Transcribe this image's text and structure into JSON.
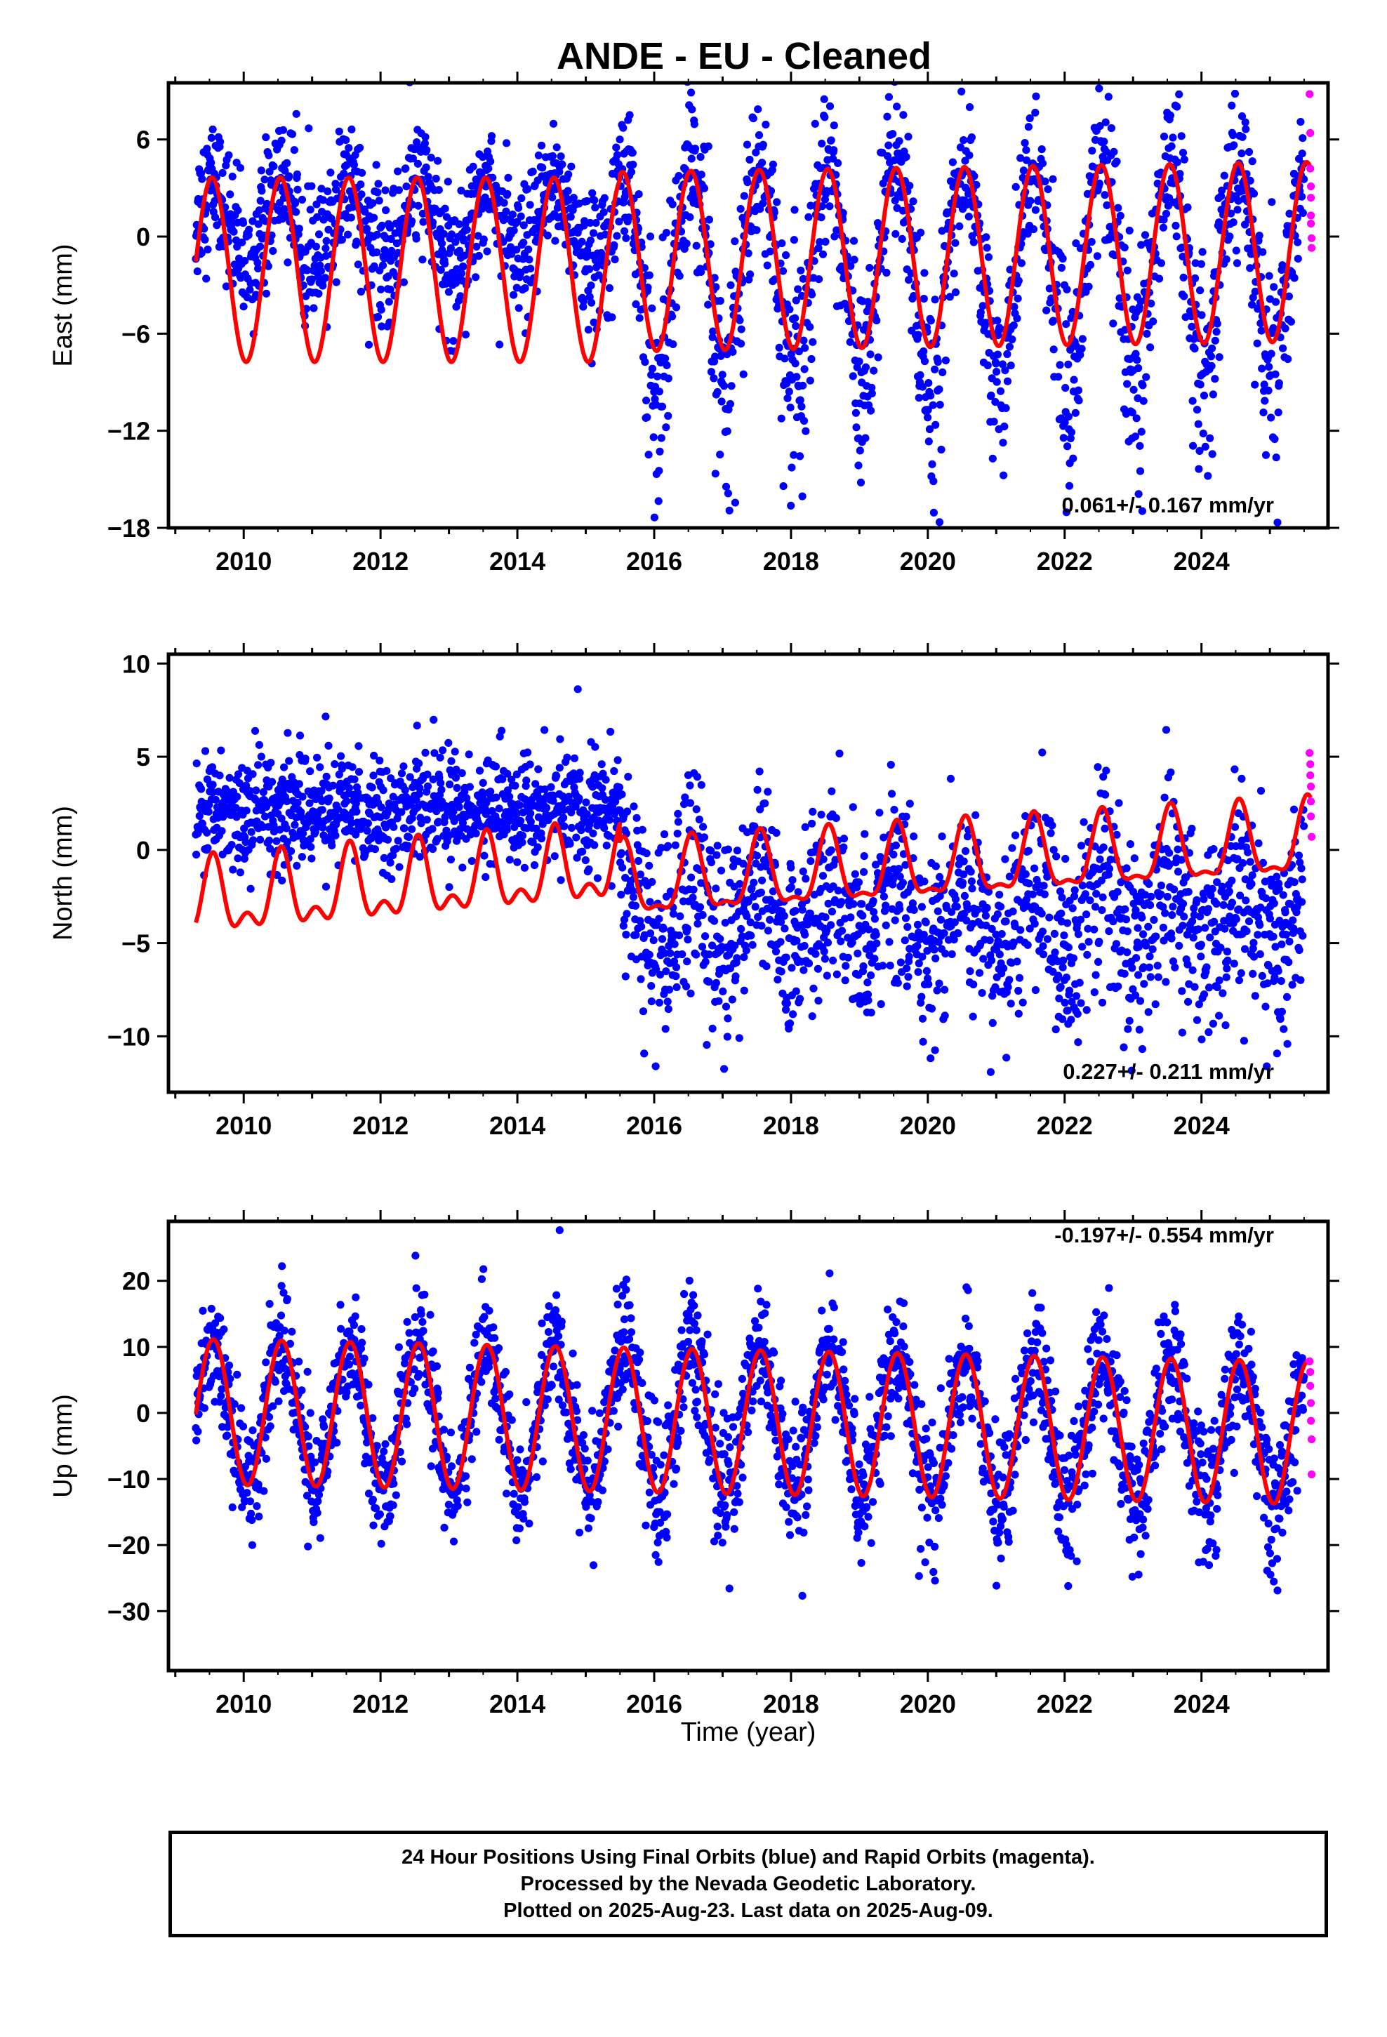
{
  "title": "ANDE  - EU - Cleaned",
  "colors": {
    "final_orbits": "#0000ff",
    "rapid_orbits": "#ff00ff",
    "model_fit": "#ff0000",
    "frame": "#000000"
  },
  "chart_data": [
    {
      "type": "scatter",
      "component": "East",
      "ylabel": "East (mm)",
      "xlabel": "",
      "xlim": [
        2008.9,
        2025.85
      ],
      "ylim": [
        -18,
        9.5
      ],
      "y_ticks": [
        -18,
        -12,
        -6,
        0,
        6
      ],
      "x_ticks": [
        2010,
        2012,
        2014,
        2016,
        2018,
        2020,
        2022,
        2024
      ],
      "rate_text": "0.061+/- 0.167 mm/yr",
      "series": [
        {
          "key": "final",
          "description": "24 Hour Positions Using Final Orbits (blue)",
          "x_range": [
            2009.3,
            2025.5
          ],
          "scatter_sd": 2.1,
          "late_offset_after_2015_5": -2.4,
          "late_extra_scatter": 2.2
        },
        {
          "key": "rapid",
          "description": "Rapid Orbits (magenta)",
          "x": [
            2025.58,
            2025.59,
            2025.59,
            2025.6,
            2025.6,
            2025.6,
            2025.6,
            2025.61,
            2025.61
          ],
          "y": [
            8.8,
            6.4,
            4.2,
            3.1,
            2.4,
            1.3,
            0.8,
            -0.1,
            -0.7
          ]
        },
        {
          "key": "model",
          "description": "model fit (red)",
          "segments": [
            {
              "x_range": [
                2009.3,
                2015.5
              ],
              "offset": -2.05,
              "annual_amp": 5.7,
              "annual_phase_deg": 5,
              "trend": 0.0
            },
            {
              "x_range": [
                2015.5,
                2025.6
              ],
              "offset": -1.55,
              "annual_amp": 5.55,
              "annual_phase_deg": 5,
              "trend": 0.06
            }
          ]
        }
      ]
    },
    {
      "type": "scatter",
      "component": "North",
      "ylabel": "North (mm)",
      "xlabel": "",
      "xlim": [
        2008.9,
        2025.85
      ],
      "ylim": [
        -13,
        10.5
      ],
      "y_ticks": [
        -10,
        -5,
        0,
        5,
        10
      ],
      "x_ticks": [
        2010,
        2012,
        2014,
        2016,
        2018,
        2020,
        2022,
        2024
      ],
      "rate_text": "0.227+/- 0.211 mm/yr",
      "series": [
        {
          "key": "final",
          "description": "24 Hour Positions Using Final Orbits (blue)",
          "x_range": [
            2009.3,
            2025.5
          ],
          "scatter_sd": 1.5,
          "early_mean": 2.2,
          "late_mean": -3.5,
          "late_extra_scatter": 2.4
        },
        {
          "key": "rapid",
          "description": "Rapid Orbits (magenta)",
          "x": [
            2025.58,
            2025.59,
            2025.59,
            2025.6,
            2025.6,
            2025.6,
            2025.61
          ],
          "y": [
            5.2,
            4.6,
            4.0,
            3.4,
            2.6,
            1.8,
            0.7
          ]
        },
        {
          "key": "model",
          "description": "model fit (red)",
          "segments": [
            {
              "x_range": [
                2009.3,
                2015.5
              ],
              "offset": -2.9,
              "annual_amp": 1.7,
              "semiannual_amp": 1.0,
              "trend": 0.31
            },
            {
              "x_range": [
                2015.5,
                2025.6
              ],
              "offset": -1.9,
              "annual_amp": 1.9,
              "semiannual_amp": 0.7,
              "trend": 0.227
            }
          ]
        }
      ]
    },
    {
      "type": "scatter",
      "component": "Up",
      "ylabel": "Up (mm)",
      "xlabel": "Time (year)",
      "xlim": [
        2008.9,
        2025.85
      ],
      "ylim": [
        -39,
        29
      ],
      "y_ticks": [
        -30,
        -20,
        -10,
        0,
        10,
        20
      ],
      "x_ticks": [
        2010,
        2012,
        2014,
        2016,
        2018,
        2020,
        2022,
        2024
      ],
      "rate_text": "-0.197+/- 0.554 mm/yr",
      "series": [
        {
          "key": "final",
          "description": "24 Hour Positions Using Final Orbits (blue)",
          "x_range": [
            2009.3,
            2025.5
          ],
          "scatter_sd": 4.3,
          "late_extra_scatter": 3.0
        },
        {
          "key": "rapid",
          "description": "Rapid Orbits (magenta)",
          "x": [
            2025.58,
            2025.59,
            2025.59,
            2025.6,
            2025.6,
            2025.61,
            2025.61
          ],
          "y": [
            7.8,
            6.2,
            4.1,
            1.5,
            -1.2,
            -4.0,
            -9.3
          ]
        },
        {
          "key": "model",
          "description": "model fit (red)",
          "segments": [
            {
              "x_range": [
                2009.3,
                2025.6
              ],
              "offset": 0.2,
              "annual_amp": 11.0,
              "annual_amp_end": 10.8,
              "annual_phase_deg": -2,
              "trend": -0.197
            }
          ]
        }
      ]
    }
  ],
  "footer": {
    "line1": "24 Hour Positions Using Final Orbits (blue) and Rapid Orbits (magenta).",
    "line2": "Processed by the Nevada Geodetic Laboratory.",
    "line3": "Plotted on 2025-Aug-23. Last data on 2025-Aug-09."
  }
}
